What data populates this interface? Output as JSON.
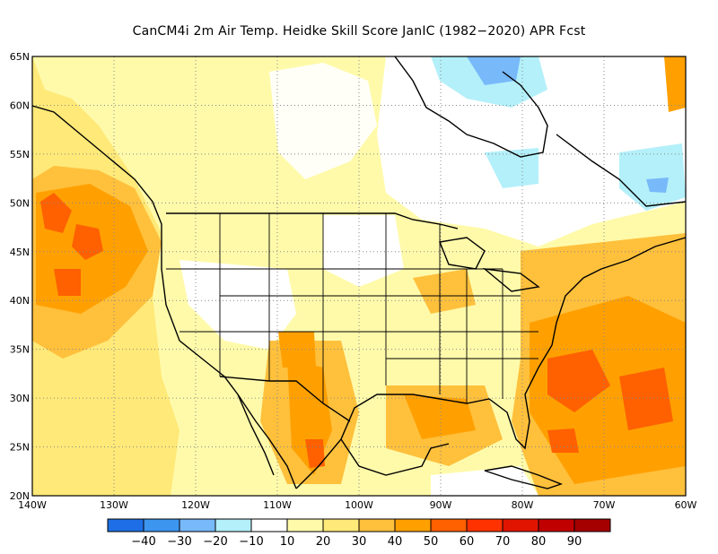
{
  "title": "CanCM4i  2m Air Temp. Heidke Skill Score JanIC (1982−2020) APR Fcst",
  "map": {
    "lat_labels": [
      "65N",
      "60N",
      "55N",
      "50N",
      "45N",
      "40N",
      "35N",
      "30N",
      "25N",
      "20N"
    ],
    "lon_labels": [
      "140W",
      "130W",
      "120W",
      "110W",
      "100W",
      "90W",
      "80W",
      "70W",
      "60W"
    ],
    "lat_values": [
      65,
      60,
      55,
      50,
      45,
      40,
      35,
      30,
      25,
      20
    ],
    "lon_values": [
      -140,
      -130,
      -120,
      -110,
      -100,
      -90,
      -80,
      -70,
      -60
    ],
    "grid": true
  },
  "colorbar": {
    "colors": [
      "#1e6fe6",
      "#3c96f0",
      "#78b9fa",
      "#b4f0fa",
      "#ffffff",
      "#fffaaa",
      "#ffe978",
      "#ffc03c",
      "#ffa000",
      "#ff6000",
      "#ff3200",
      "#e11400",
      "#c00000",
      "#a50000"
    ],
    "labels": [
      "−40",
      "−30",
      "−20",
      "−10",
      "10",
      "20",
      "30",
      "40",
      "50",
      "60",
      "70",
      "80",
      "90"
    ]
  },
  "regions": [
    {
      "name": "pacific-northeast",
      "color": "#ff6000"
    },
    {
      "name": "atlantic-southeast",
      "color": "#ffa000"
    },
    {
      "name": "gulf-of-mexico",
      "color": "#ffc03c"
    },
    {
      "name": "canadian-interior",
      "color": "#ffffff"
    },
    {
      "name": "hudson-bay",
      "color": "#b4f0fa"
    },
    {
      "name": "northern-mexico",
      "color": "#ff6000"
    }
  ]
}
